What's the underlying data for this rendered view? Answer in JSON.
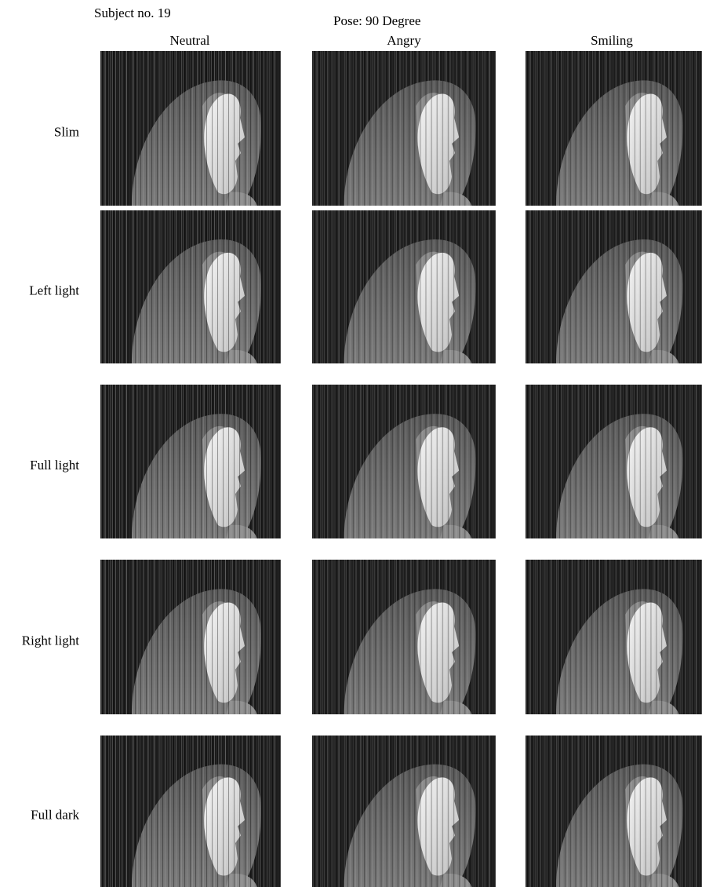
{
  "header": {
    "subject": "Subject no. 19",
    "pose": "Pose: 90 Degree"
  },
  "columns": [
    "Neutral",
    "Angry",
    "Smiling"
  ],
  "rows": [
    "Slim",
    "Left light",
    "Full light",
    "Right light",
    "Full dark"
  ]
}
